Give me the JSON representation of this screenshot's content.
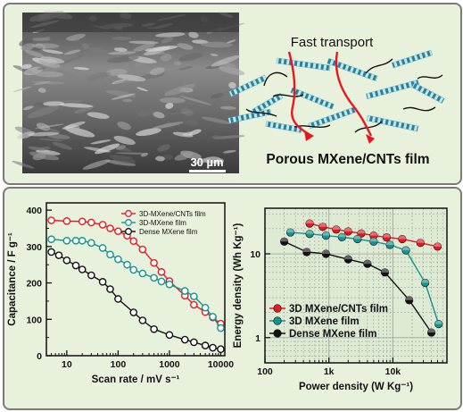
{
  "sem_image": {
    "scale_bar_label": "30 µm"
  },
  "schematic": {
    "top_label": "Fast transport",
    "bottom_label": "Porous MXene/CNTs film"
  },
  "colors": {
    "red": "#e8171f",
    "teal": "#12938f",
    "black": "#111111",
    "panel_bg": "#e8f1dc",
    "grid": "#9aa89a"
  },
  "chart_data": [
    {
      "type": "line",
      "xscale": "log",
      "xlabel": "Scan rate / mV s⁻¹",
      "ylabel": "Capacitance / F g⁻¹",
      "xlim": [
        4,
        12000
      ],
      "ylim": [
        0,
        420
      ],
      "x_ticks": [
        10,
        100,
        1000,
        10000
      ],
      "x_tick_labels": [
        "10",
        "100",
        "1000",
        "10000"
      ],
      "y_ticks": [
        0,
        100,
        200,
        300,
        400
      ],
      "y_tick_labels": [
        "0",
        "100",
        "200",
        "300",
        "400"
      ],
      "legend": "top-right",
      "series": [
        {
          "name": "3D-MXene/CNTs film",
          "color": "#e8171f",
          "marker": "open-circle",
          "x": [
            5,
            10,
            20,
            30,
            50,
            70,
            100,
            150,
            200,
            300,
            500,
            700,
            1000,
            2000,
            3000,
            5000,
            7000,
            10000
          ],
          "y": [
            372,
            370,
            369,
            366,
            360,
            350,
            342,
            330,
            315,
            292,
            255,
            230,
            205,
            165,
            140,
            120,
            105,
            88
          ]
        },
        {
          "name": "3D-MXene film",
          "color": "#12938f",
          "marker": "open-circle",
          "x": [
            5,
            10,
            15,
            20,
            30,
            50,
            70,
            100,
            150,
            200,
            300,
            500,
            700,
            1000,
            2000,
            3000,
            5000,
            7000,
            10000
          ],
          "y": [
            320,
            316,
            316,
            316,
            310,
            296,
            278,
            265,
            250,
            236,
            226,
            214,
            204,
            196,
            178,
            163,
            132,
            107,
            76
          ]
        },
        {
          "name": "Dense MXene film",
          "color": "#111111",
          "marker": "open-circle",
          "x": [
            5,
            7,
            10,
            15,
            20,
            30,
            50,
            70,
            100,
            200,
            300,
            500,
            1000,
            2000,
            3000,
            5000,
            7000,
            10000
          ],
          "y": [
            285,
            276,
            262,
            248,
            237,
            221,
            203,
            183,
            156,
            119,
            97,
            73,
            57,
            44,
            37,
            28,
            22,
            18
          ]
        }
      ]
    },
    {
      "type": "line",
      "xscale": "log",
      "yscale": "log",
      "xlabel": "Power density (W Kg⁻¹)",
      "ylabel": "Energy density (Wh Kg⁻¹)",
      "xlim": [
        100,
        70000
      ],
      "ylim": [
        0.5,
        35
      ],
      "x_ticks": [
        100,
        1000,
        10000
      ],
      "x_tick_labels": [
        "100",
        "1k",
        "10k"
      ],
      "y_ticks": [
        1,
        10
      ],
      "y_tick_labels": [
        "1",
        "10"
      ],
      "grid": true,
      "legend": "bottom-left",
      "series": [
        {
          "name": "3D MXene/CNTs film",
          "color": "#e8171f",
          "marker": "filled-circle",
          "x": [
            500,
            800,
            1300,
            2000,
            3200,
            5000,
            8000,
            14000,
            27000,
            50000
          ],
          "y": [
            23,
            21,
            19.5,
            18.5,
            17.5,
            16.5,
            15.7,
            15,
            13.5,
            12.2
          ]
        },
        {
          "name": "3D MXene film",
          "color": "#12938f",
          "marker": "filled-circle",
          "x": [
            250,
            500,
            900,
            1600,
            2800,
            5000,
            9000,
            16000,
            32000,
            52000
          ],
          "y": [
            18,
            17.3,
            16.5,
            15.8,
            15,
            14,
            12.8,
            11,
            4.5,
            1.45
          ]
        },
        {
          "name": "Dense MXene film",
          "color": "#111111",
          "marker": "filled-circle",
          "x": [
            200,
            450,
            900,
            2000,
            4000,
            7500,
            18000,
            40000
          ],
          "y": [
            14,
            10.5,
            10,
            8.6,
            7.6,
            6,
            2.8,
            1.15
          ]
        }
      ]
    }
  ]
}
